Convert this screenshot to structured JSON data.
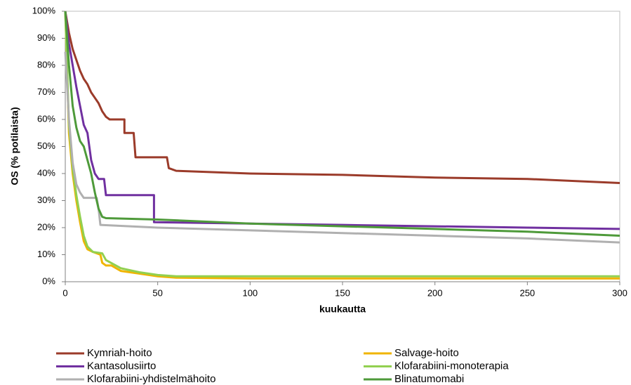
{
  "chart_data": {
    "type": "line",
    "ylabel": "OS (% potilaista)",
    "xlabel": "kuukautta",
    "xlim": [
      0,
      300
    ],
    "xticks": [
      0,
      50,
      100,
      150,
      200,
      250,
      300
    ],
    "ylim": [
      0,
      100
    ],
    "yticks": [
      {
        "value": 0,
        "label": "0%"
      },
      {
        "value": 10,
        "label": "10%"
      },
      {
        "value": 20,
        "label": "20%"
      },
      {
        "value": 30,
        "label": "30%"
      },
      {
        "value": 40,
        "label": "40%"
      },
      {
        "value": 50,
        "label": "50%"
      },
      {
        "value": 60,
        "label": "60%"
      },
      {
        "value": 70,
        "label": "70%"
      },
      {
        "value": 80,
        "label": "80%"
      },
      {
        "value": 90,
        "label": "90%"
      },
      {
        "value": 100,
        "label": "100%"
      }
    ],
    "series": [
      {
        "name": "Kymriah-hoito",
        "color": "#9b3b2a",
        "x": [
          0,
          2,
          4,
          6,
          8,
          10,
          12,
          14,
          16,
          18,
          20,
          22,
          24,
          32,
          32,
          37,
          38,
          55,
          56,
          60,
          100,
          150,
          200,
          250,
          300
        ],
        "values": [
          100,
          92,
          86,
          82,
          78,
          75,
          73,
          70,
          68,
          66,
          63,
          61,
          60,
          60,
          55,
          55,
          46,
          46,
          42,
          41,
          40,
          39.5,
          38.5,
          38,
          36.5
        ]
      },
      {
        "name": "Salvage-hoito",
        "color": "#f0b400",
        "x": [
          0,
          2,
          4,
          6,
          8,
          10,
          12,
          15,
          19,
          20,
          22,
          25,
          30,
          40,
          50,
          60,
          100,
          200,
          300
        ],
        "values": [
          100,
          55,
          40,
          30,
          22,
          15,
          12,
          11,
          10,
          7,
          6,
          6,
          4,
          3,
          2,
          1.5,
          1.2,
          1.2,
          1.2
        ]
      },
      {
        "name": "Kantasolusiirto",
        "color": "#7030a0",
        "x": [
          0,
          2,
          4,
          6,
          8,
          10,
          12,
          14,
          16,
          18,
          21,
          22,
          48,
          48,
          100,
          150,
          200,
          250,
          300
        ],
        "values": [
          100,
          88,
          80,
          72,
          65,
          58,
          55,
          45,
          40,
          38,
          38,
          32,
          32,
          22,
          21.5,
          21,
          20.5,
          20,
          19.5
        ]
      },
      {
        "name": "Klofarabiini-monoterapia",
        "color": "#92d050",
        "x": [
          0,
          2,
          4,
          6,
          8,
          10,
          12,
          15,
          20,
          22,
          30,
          40,
          50,
          60,
          300
        ],
        "values": [
          100,
          58,
          42,
          32,
          24,
          17,
          13,
          11,
          10.5,
          8,
          5,
          3.5,
          2.5,
          2,
          2
        ]
      },
      {
        "name": "Klofarabiini-yhdistelmähoito",
        "color": "#b0b0b0",
        "x": [
          0,
          2,
          4,
          6,
          8,
          10,
          17,
          18,
          19,
          50,
          100,
          150,
          200,
          250,
          300
        ],
        "values": [
          85,
          60,
          44,
          36,
          33,
          31,
          31,
          27,
          21,
          20,
          19,
          18,
          17,
          16,
          14.5
        ]
      },
      {
        "name": "Blinatumomabi",
        "color": "#4e9a3a",
        "x": [
          0,
          2,
          4,
          6,
          8,
          10,
          12,
          14,
          16,
          18,
          20,
          22,
          50,
          100,
          150,
          200,
          250,
          300
        ],
        "values": [
          100,
          80,
          65,
          57,
          52,
          50,
          45,
          40,
          33,
          27,
          24,
          23.5,
          23,
          21.5,
          20.5,
          19.5,
          18.5,
          17
        ]
      }
    ]
  }
}
